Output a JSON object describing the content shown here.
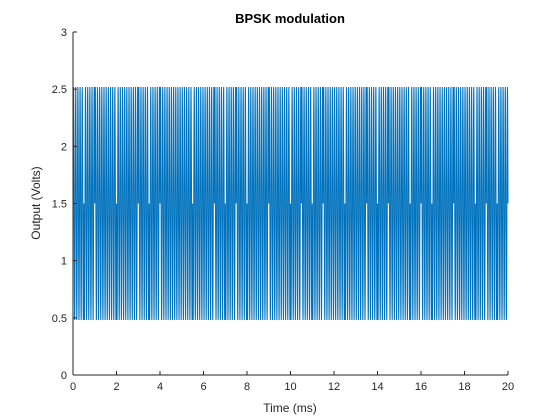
{
  "chart_data": {
    "type": "line",
    "title": "BPSK modulation",
    "xlabel": "Time (ms)",
    "ylabel": "Output (Volts)",
    "xlim": [
      0,
      20
    ],
    "ylim": [
      0,
      3
    ],
    "xticks": [
      0,
      2,
      4,
      6,
      8,
      10,
      12,
      14,
      16,
      18,
      20
    ],
    "yticks": [
      0,
      0.5,
      1,
      1.5,
      2,
      2.5,
      3
    ],
    "xtick_labels": [
      "0",
      "2",
      "4",
      "6",
      "8",
      "10",
      "12",
      "14",
      "16",
      "18",
      "20"
    ],
    "ytick_labels": [
      "0",
      "0.5",
      "1",
      "1.5",
      "2",
      "2.5",
      "3"
    ],
    "grid": false,
    "series": [
      {
        "color": "#0072BD",
        "signal": {
          "offset": 1.5,
          "amplitude": 1.02,
          "carrier_cycles_per_ms": 10,
          "bit_period_ms": 0.5,
          "bits": [
            1,
            0,
            1,
            1,
            0,
            0,
            1,
            0,
            1,
            1,
            1,
            0,
            0,
            1,
            0,
            1,
            0,
            0,
            1,
            1,
            0,
            1,
            0,
            1,
            1,
            0,
            0,
            1,
            0,
            1,
            1,
            0,
            1,
            0,
            0,
            1,
            1,
            0,
            1,
            0
          ]
        }
      }
    ]
  },
  "style": {
    "axis_color": "#262626",
    "line_color": "#0072BD"
  }
}
